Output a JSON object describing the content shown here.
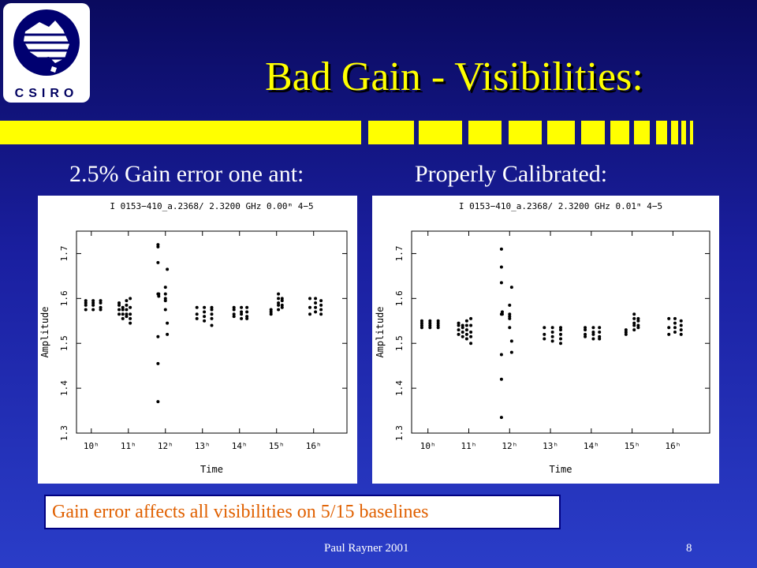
{
  "logo": {
    "text": "CSIRO"
  },
  "slide": {
    "title": "Bad Gain - Visibilities:",
    "left_subtitle": "2.5% Gain error one ant:",
    "right_subtitle": "Properly Calibrated:",
    "footer_note": "Gain error affects all visibilities on 5/15 baselines",
    "credit": "Paul Rayner 2001",
    "page_number": "8"
  },
  "colors": {
    "title": "#ffff00",
    "accent_bar": "#ffff00",
    "footer_text": "#e06000",
    "background_top": "#0a0a5e",
    "background_bottom": "#2a3dc8"
  },
  "chart_data": [
    {
      "type": "scatter",
      "title": "I 0153−410_a.2368/ 2.3200 GHz 0.00ᵐ  4−5",
      "xlabel": "Time",
      "ylabel": "Amplitude",
      "xlim": [
        9.6,
        16.9
      ],
      "ylim": [
        1.3,
        1.75
      ],
      "yticks": [
        1.3,
        1.4,
        1.5,
        1.6,
        1.7
      ],
      "xticks": [
        10,
        11,
        12,
        13,
        14,
        15,
        16
      ],
      "xtick_labels": [
        "10ʰ",
        "11ʰ",
        "12ʰ",
        "13ʰ",
        "14ʰ",
        "15ʰ",
        "16ʰ"
      ],
      "grid": false,
      "x": [
        9.85,
        9.85,
        9.85,
        9.85,
        10.05,
        10.05,
        10.05,
        10.05,
        10.25,
        10.25,
        10.25,
        10.25,
        10.75,
        10.75,
        10.75,
        10.75,
        10.85,
        10.85,
        10.85,
        10.85,
        10.95,
        10.95,
        10.95,
        10.95,
        10.95,
        11.05,
        11.05,
        11.05,
        11.05,
        11.05,
        11.8,
        11.8,
        11.8,
        11.8,
        11.8,
        11.8,
        11.8,
        11.82,
        11.82,
        12.0,
        12.0,
        12.0,
        12.0,
        12.0,
        12.05,
        12.05,
        12.05,
        12.85,
        12.85,
        12.85,
        13.05,
        13.05,
        13.05,
        13.05,
        13.25,
        13.25,
        13.25,
        13.25,
        13.25,
        13.85,
        13.85,
        13.85,
        13.85,
        14.05,
        14.05,
        14.05,
        14.05,
        14.2,
        14.2,
        14.2,
        14.2,
        14.85,
        14.85,
        14.85,
        15.05,
        15.05,
        15.05,
        15.05,
        15.05,
        15.15,
        15.15,
        15.15,
        15.15,
        15.9,
        15.9,
        15.9,
        16.05,
        16.05,
        16.05,
        16.05,
        16.2,
        16.2,
        16.2,
        16.2
      ],
      "y": [
        1.575,
        1.585,
        1.59,
        1.595,
        1.575,
        1.585,
        1.59,
        1.595,
        1.575,
        1.58,
        1.59,
        1.595,
        1.565,
        1.575,
        1.585,
        1.59,
        1.555,
        1.565,
        1.575,
        1.58,
        1.56,
        1.565,
        1.575,
        1.585,
        1.595,
        1.545,
        1.555,
        1.565,
        1.58,
        1.6,
        1.37,
        1.455,
        1.515,
        1.61,
        1.68,
        1.715,
        1.72,
        1.605,
        1.61,
        1.575,
        1.595,
        1.6,
        1.61,
        1.625,
        1.52,
        1.545,
        1.665,
        1.555,
        1.565,
        1.58,
        1.55,
        1.56,
        1.57,
        1.58,
        1.54,
        1.555,
        1.565,
        1.575,
        1.58,
        1.56,
        1.565,
        1.575,
        1.58,
        1.555,
        1.565,
        1.57,
        1.58,
        1.555,
        1.56,
        1.57,
        1.58,
        1.565,
        1.57,
        1.575,
        1.575,
        1.585,
        1.59,
        1.6,
        1.61,
        1.58,
        1.585,
        1.595,
        1.6,
        1.565,
        1.58,
        1.6,
        1.57,
        1.58,
        1.59,
        1.6,
        1.565,
        1.575,
        1.585,
        1.595
      ]
    },
    {
      "type": "scatter",
      "title": "I 0153−410_a.2368/ 2.3200 GHz 0.01ᵐ  4−5",
      "xlabel": "Time",
      "ylabel": "Amplitude",
      "xlim": [
        9.6,
        16.9
      ],
      "ylim": [
        1.3,
        1.75
      ],
      "yticks": [
        1.3,
        1.4,
        1.5,
        1.6,
        1.7
      ],
      "xticks": [
        10,
        11,
        12,
        13,
        14,
        15,
        16
      ],
      "xtick_labels": [
        "10ʰ",
        "11ʰ",
        "12ʰ",
        "13ʰ",
        "14ʰ",
        "15ʰ",
        "16ʰ"
      ],
      "grid": false,
      "x": [
        9.85,
        9.85,
        9.85,
        9.85,
        10.05,
        10.05,
        10.05,
        10.05,
        10.25,
        10.25,
        10.25,
        10.25,
        10.75,
        10.75,
        10.75,
        10.75,
        10.85,
        10.85,
        10.85,
        10.85,
        10.95,
        10.95,
        10.95,
        10.95,
        10.95,
        11.05,
        11.05,
        11.05,
        11.05,
        11.05,
        11.8,
        11.8,
        11.8,
        11.8,
        11.8,
        11.8,
        11.8,
        11.82,
        11.82,
        12.0,
        12.0,
        12.0,
        12.0,
        12.0,
        12.05,
        12.05,
        12.05,
        12.85,
        12.85,
        12.85,
        13.05,
        13.05,
        13.05,
        13.05,
        13.25,
        13.25,
        13.25,
        13.25,
        13.25,
        13.85,
        13.85,
        13.85,
        13.85,
        14.05,
        14.05,
        14.05,
        14.05,
        14.2,
        14.2,
        14.2,
        14.2,
        14.85,
        14.85,
        14.85,
        15.05,
        15.05,
        15.05,
        15.05,
        15.05,
        15.15,
        15.15,
        15.15,
        15.15,
        15.9,
        15.9,
        15.9,
        16.05,
        16.05,
        16.05,
        16.05,
        16.2,
        16.2,
        16.2,
        16.2
      ],
      "y": [
        1.535,
        1.54,
        1.545,
        1.55,
        1.535,
        1.54,
        1.545,
        1.55,
        1.535,
        1.54,
        1.545,
        1.55,
        1.52,
        1.53,
        1.54,
        1.545,
        1.515,
        1.525,
        1.535,
        1.54,
        1.51,
        1.52,
        1.53,
        1.54,
        1.55,
        1.5,
        1.515,
        1.525,
        1.54,
        1.555,
        1.335,
        1.42,
        1.475,
        1.565,
        1.635,
        1.67,
        1.71,
        1.565,
        1.57,
        1.535,
        1.555,
        1.56,
        1.565,
        1.585,
        1.48,
        1.505,
        1.625,
        1.51,
        1.52,
        1.535,
        1.505,
        1.515,
        1.525,
        1.535,
        1.5,
        1.51,
        1.52,
        1.53,
        1.535,
        1.515,
        1.52,
        1.53,
        1.535,
        1.51,
        1.52,
        1.525,
        1.535,
        1.51,
        1.515,
        1.525,
        1.535,
        1.52,
        1.525,
        1.53,
        1.53,
        1.54,
        1.545,
        1.555,
        1.565,
        1.535,
        1.54,
        1.55,
        1.555,
        1.52,
        1.535,
        1.555,
        1.525,
        1.535,
        1.545,
        1.555,
        1.52,
        1.53,
        1.54,
        1.55
      ]
    }
  ]
}
